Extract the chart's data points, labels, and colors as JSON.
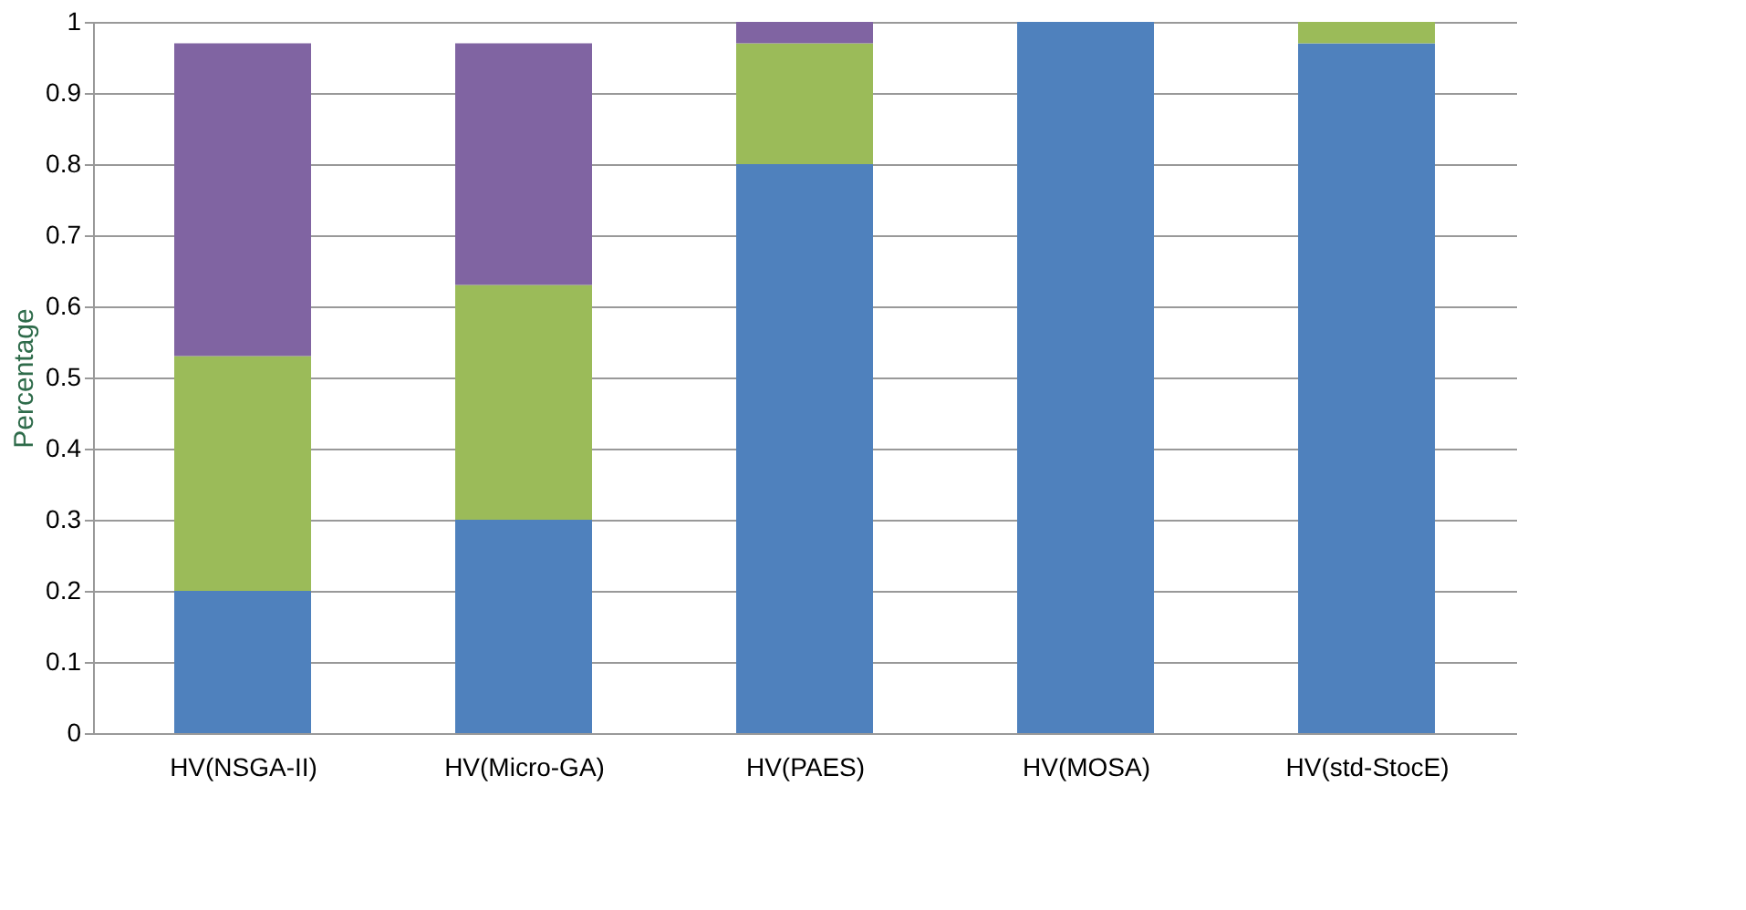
{
  "chart_data": {
    "type": "bar",
    "stacked": true,
    "ylabel": "Percentage",
    "categories": [
      "HV(NSGA-II)",
      "HV(Micro-GA)",
      "HV(PAES)",
      "HV(MOSA)",
      "HV(std-StocE)"
    ],
    "series": [
      {
        "color": "#4f81bd",
        "values": [
          0.2,
          0.3,
          0.8,
          1.0,
          0.97
        ]
      },
      {
        "color": "#9bbb59",
        "values": [
          0.33,
          0.33,
          0.17,
          0,
          0.03
        ]
      },
      {
        "color": "#8064a2",
        "values": [
          0.44,
          0.34,
          0.03,
          0,
          0
        ]
      }
    ],
    "ylim": [
      0,
      1
    ],
    "yticks": [
      0,
      0.1,
      0.2,
      0.3,
      0.4,
      0.5,
      0.6,
      0.7,
      0.8,
      0.9,
      1
    ],
    "grid": "y"
  }
}
